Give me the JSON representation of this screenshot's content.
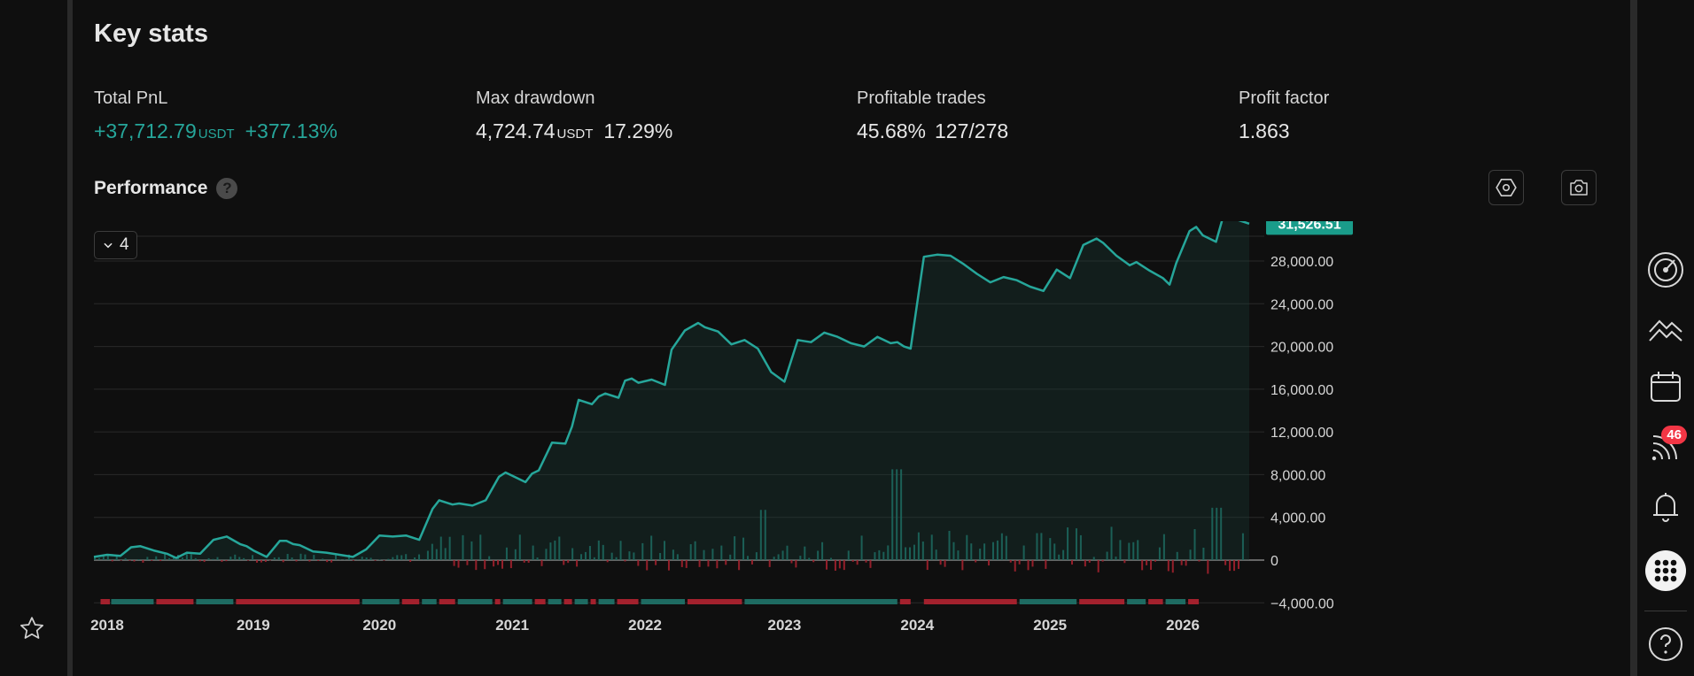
{
  "key_stats": {
    "title": "Key stats",
    "total_pnl": {
      "label": "Total PnL",
      "value": "+37,712.79",
      "unit": "USDT",
      "percent": "+377.13%"
    },
    "max_drawdown": {
      "label": "Max drawdown",
      "value": "4,724.74",
      "unit": "USDT",
      "percent": "17.29%"
    },
    "profitable_trades": {
      "label": "Profitable trades",
      "percent": "45.68%",
      "ratio": "127/278"
    },
    "profit_factor": {
      "label": "Profit factor",
      "value": "1.863"
    }
  },
  "performance": {
    "title": "Performance",
    "help_symbol": "?",
    "series_count": "4",
    "last_value_label": "31,526.51"
  },
  "right_rail": {
    "badge_count": "46"
  },
  "colors": {
    "accent": "#26a69a",
    "negative": "#f23645",
    "bg": "#0f0f0f",
    "grid": "#2a2a2a"
  },
  "icons": [
    "hexagon-settings-icon",
    "camera-icon",
    "expand-icon",
    "chevron-down-icon",
    "star-icon",
    "gauge-icon",
    "mountain-chart-icon",
    "calendar-icon",
    "broadcast-icon",
    "bell-icon",
    "apps-grid-icon",
    "help-circle-icon"
  ],
  "chart_data": {
    "type": "line",
    "ylim": [
      -4000,
      32000
    ],
    "yticks": [
      -4000,
      0,
      4000,
      8000,
      12000,
      16000,
      20000,
      24000,
      28000
    ],
    "ytick_labels": [
      "−4,000.00",
      "0",
      "4,000.00",
      "8,000.00",
      "12,000.00",
      "16,000.00",
      "20,000.00",
      "24,000.00",
      "28,000.00"
    ],
    "x_labels": [
      "2018",
      "2019",
      "2020",
      "2021",
      "2022",
      "2023",
      "2024",
      "2025",
      "2026"
    ],
    "x_label_times": [
      2018.1,
      2019.2,
      2020.15,
      2021.15,
      2022.15,
      2023.2,
      2024.2,
      2025.2,
      2026.2
    ],
    "xlim": [
      2018.0,
      2026.8
    ],
    "equity": {
      "t": [
        2018.0,
        2018.1,
        2018.2,
        2018.28,
        2018.35,
        2018.45,
        2018.55,
        2018.62,
        2018.7,
        2018.8,
        2018.9,
        2019.0,
        2019.1,
        2019.15,
        2019.2,
        2019.3,
        2019.4,
        2019.45,
        2019.5,
        2019.55,
        2019.65,
        2019.75,
        2019.85,
        2019.95,
        2020.05,
        2020.15,
        2020.25,
        2020.35,
        2020.45,
        2020.55,
        2020.6,
        2020.7,
        2020.75,
        2020.85,
        2020.95,
        2021.05,
        2021.1,
        2021.15,
        2021.25,
        2021.3,
        2021.35,
        2021.45,
        2021.55,
        2021.6,
        2021.65,
        2021.75,
        2021.8,
        2021.85,
        2021.95,
        2022.0,
        2022.05,
        2022.1,
        2022.2,
        2022.3,
        2022.35,
        2022.45,
        2022.55,
        2022.6,
        2022.7,
        2022.8,
        2022.9,
        2023.0,
        2023.1,
        2023.2,
        2023.3,
        2023.4,
        2023.5,
        2023.6,
        2023.7,
        2023.8,
        2023.9,
        2024.0,
        2024.05,
        2024.1,
        2024.15,
        2024.25,
        2024.35,
        2024.45,
        2024.55,
        2024.65,
        2024.75,
        2024.85,
        2024.95,
        2025.05,
        2025.15,
        2025.25,
        2025.35,
        2025.45,
        2025.55,
        2025.6,
        2025.7,
        2025.8,
        2025.85,
        2025.95,
        2026.05,
        2026.1,
        2026.15,
        2026.25,
        2026.3,
        2026.35,
        2026.45,
        2026.5,
        2026.6,
        2026.7
      ],
      "v": [
        300,
        500,
        400,
        1200,
        1300,
        900,
        600,
        200,
        700,
        600,
        1900,
        2200,
        1500,
        1300,
        900,
        300,
        1800,
        1800,
        1500,
        1400,
        800,
        700,
        500,
        300,
        1000,
        2300,
        2200,
        2300,
        1900,
        4800,
        5600,
        5200,
        5300,
        5100,
        5600,
        7800,
        8200,
        7900,
        7300,
        8100,
        8400,
        11000,
        10900,
        12500,
        15000,
        14600,
        15300,
        15600,
        15200,
        16800,
        17000,
        16600,
        16900,
        16400,
        19700,
        21500,
        22200,
        21800,
        21400,
        20200,
        20600,
        19800,
        17600,
        16700,
        20600,
        20400,
        21300,
        20900,
        20300,
        20000,
        20900,
        20300,
        20400,
        20000,
        19800,
        28400,
        28600,
        28500,
        27700,
        26800,
        26000,
        26500,
        26200,
        25600,
        25200,
        27200,
        26400,
        29500,
        30100,
        29700,
        28500,
        27600,
        27900,
        27100,
        26400,
        25800,
        27800,
        30800,
        31200,
        30400,
        29800,
        32000,
        31900,
        31500
      ]
    },
    "trade_bars": "monthly per-trade PnL histogram (green positive, red negative)",
    "period_strip": "green/red bands marking profitable/unprofitable periods"
  }
}
